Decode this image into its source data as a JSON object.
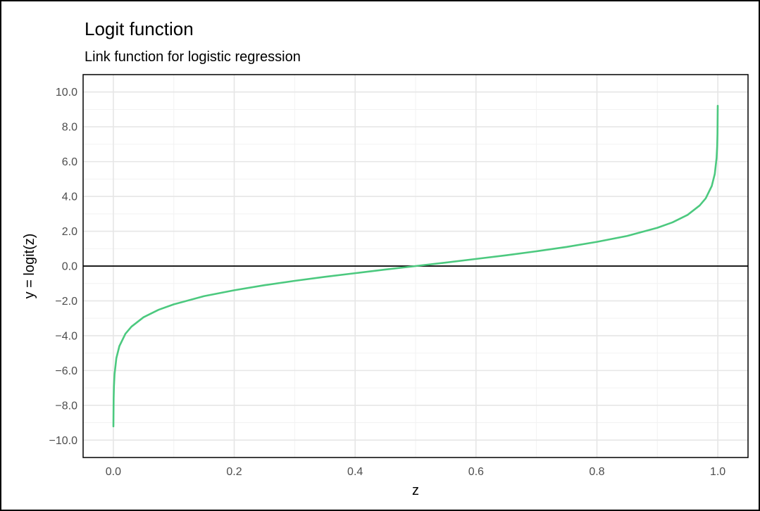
{
  "chart_data": {
    "type": "line",
    "title": "Logit function",
    "subtitle": "Link function for logistic regression",
    "xlabel": "z",
    "ylabel": "y = logit(z)",
    "xlim": [
      -0.05,
      1.05
    ],
    "ylim": [
      -11.0,
      11.0
    ],
    "x_ticks": [
      0.0,
      0.2,
      0.4,
      0.6,
      0.8,
      1.0
    ],
    "x_tick_labels": [
      "0.0",
      "0.2",
      "0.4",
      "0.6",
      "0.8",
      "1.0"
    ],
    "y_ticks": [
      -10,
      -8,
      -6,
      -4,
      -2,
      0,
      2,
      4,
      6,
      8,
      10
    ],
    "y_tick_labels": [
      "−10.0",
      "−8.0",
      "−6.0",
      "−4.0",
      "−2.0",
      "0.0",
      "2.0",
      "4.0",
      "6.0",
      "8.0",
      "10.0"
    ],
    "grid": true,
    "hline": 0,
    "series": [
      {
        "color": "#4cc97f",
        "x": [
          0.0001,
          0.0005,
          0.001,
          0.002,
          0.005,
          0.01,
          0.02,
          0.03,
          0.05,
          0.075,
          0.1,
          0.15,
          0.2,
          0.25,
          0.3,
          0.35,
          0.4,
          0.45,
          0.5,
          0.55,
          0.6,
          0.65,
          0.7,
          0.75,
          0.8,
          0.85,
          0.9,
          0.925,
          0.95,
          0.97,
          0.98,
          0.99,
          0.995,
          0.998,
          0.999,
          0.9995,
          0.9999
        ],
        "y": [
          -9.21,
          -7.6,
          -6.91,
          -6.21,
          -5.29,
          -4.6,
          -3.89,
          -3.48,
          -2.94,
          -2.51,
          -2.2,
          -1.73,
          -1.39,
          -1.1,
          -0.85,
          -0.62,
          -0.41,
          -0.2,
          0.0,
          0.2,
          0.41,
          0.62,
          0.85,
          1.1,
          1.39,
          1.73,
          2.2,
          2.51,
          2.94,
          3.48,
          3.89,
          4.6,
          5.29,
          6.21,
          6.91,
          7.6,
          9.21
        ]
      }
    ]
  }
}
